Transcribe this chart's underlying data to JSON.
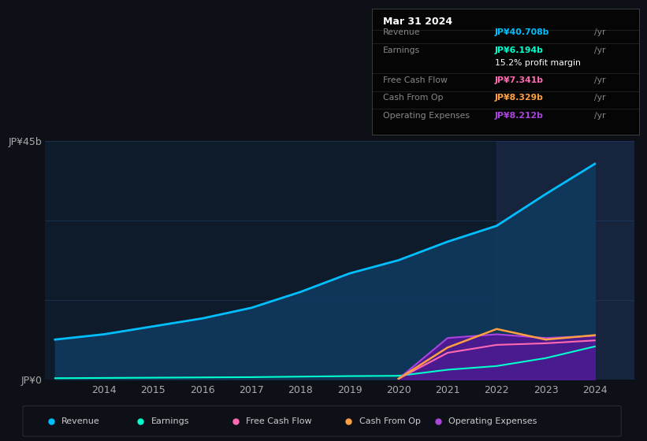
{
  "bg_color": "#0d1117",
  "plot_bg_color": "#0d1b2a",
  "grid_color": "#1e3a5f",
  "years": [
    2013,
    2014,
    2015,
    2016,
    2017,
    2018,
    2019,
    2020,
    2021,
    2022,
    2023,
    2024
  ],
  "revenue": [
    7.5,
    8.5,
    10.0,
    11.5,
    13.5,
    16.5,
    20.0,
    22.5,
    26.0,
    29.0,
    35.0,
    40.708
  ],
  "earnings": [
    0.2,
    0.25,
    0.3,
    0.35,
    0.4,
    0.5,
    0.6,
    0.65,
    1.8,
    2.5,
    4.0,
    6.194
  ],
  "years_recent": [
    2020,
    2021,
    2022,
    2023,
    2024
  ],
  "op_exp_vals": [
    0.1,
    7.8,
    8.5,
    7.8,
    8.212
  ],
  "fcf_vals": [
    0.1,
    5.0,
    6.5,
    6.8,
    7.341
  ],
  "cfop_vals": [
    0.1,
    6.0,
    9.5,
    7.5,
    8.329
  ],
  "earnings_recent": [
    0.65,
    1.8,
    2.5,
    4.0,
    6.194
  ],
  "ylim": [
    0,
    45
  ],
  "xlim": [
    2012.8,
    2024.8
  ],
  "xticks": [
    2014,
    2015,
    2016,
    2017,
    2018,
    2019,
    2020,
    2021,
    2022,
    2023,
    2024
  ],
  "revenue_color": "#00bfff",
  "revenue_fill": "#103a5e",
  "earnings_color": "#00ffcc",
  "free_cash_flow_color": "#ff69b4",
  "cash_from_op_color": "#ffa040",
  "operating_expenses_color": "#aa44dd",
  "operating_expenses_fill": "#6a0dad",
  "tooltip": {
    "date": "Mar 31 2024",
    "revenue_label": "Revenue",
    "revenue_value": "JP¥40.708b",
    "revenue_color": "#00bfff",
    "earnings_label": "Earnings",
    "earnings_value": "JP¥6.194b",
    "earnings_color": "#00ffcc",
    "margin_text": "15.2% profit margin",
    "free_cash_flow_label": "Free Cash Flow",
    "free_cash_flow_value": "JP¥7.341b",
    "free_cash_flow_color": "#ff69b4",
    "cash_from_op_label": "Cash From Op",
    "cash_from_op_value": "JP¥8.329b",
    "cash_from_op_color": "#ffa040",
    "op_exp_label": "Operating Expenses",
    "op_exp_value": "JP¥8.212b",
    "op_exp_color": "#aa44dd"
  },
  "legend_items": [
    {
      "label": "Revenue",
      "color": "#00bfff"
    },
    {
      "label": "Earnings",
      "color": "#00ffcc"
    },
    {
      "label": "Free Cash Flow",
      "color": "#ff69b4"
    },
    {
      "label": "Cash From Op",
      "color": "#ffa040"
    },
    {
      "label": "Operating Expenses",
      "color": "#aa44dd"
    }
  ]
}
